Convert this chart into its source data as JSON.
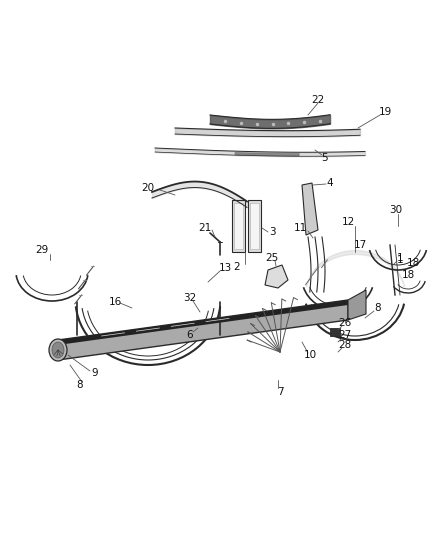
{
  "bg_color": "#ffffff",
  "line_color": "#2a2a2a",
  "gray_fill": "#888888",
  "dark_fill": "#333333",
  "light_fill": "#cccccc",
  "mid_fill": "#999999"
}
